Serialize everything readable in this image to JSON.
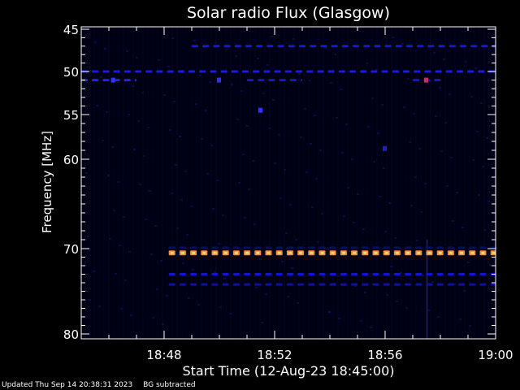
{
  "chart_data": {
    "type": "heatmap",
    "title": "Solar radio Flux (Glasgow)",
    "xlabel": "Start Time (12-Aug-23 18:45:00)",
    "ylabel": "Frequency [MHz]",
    "x_range": [
      "18:45",
      "19:00"
    ],
    "y_range": [
      45,
      80
    ],
    "y_scale": "reversed, compressed toward high frequency",
    "x_ticks": [
      "18:48",
      "18:52",
      "18:56",
      "19:00"
    ],
    "y_ticks": [
      45,
      50,
      55,
      60,
      70,
      80
    ],
    "background_color": "#000014",
    "bands": [
      {
        "freq": 70.5,
        "from": "18:48:10",
        "to": "19:00",
        "level": "high",
        "color": "#ff8a2a"
      },
      {
        "freq": 73.0,
        "from": "18:48:10",
        "to": "19:00",
        "level": "low",
        "color": "#1414c8"
      },
      {
        "freq": 74.2,
        "from": "18:48:10",
        "to": "19:00",
        "level": "low",
        "color": "#10109a"
      },
      {
        "freq": 69.9,
        "from": "18:48:10",
        "to": "19:00",
        "level": "very-low",
        "color": "#0c0c5a"
      },
      {
        "freq": 47.0,
        "from": "18:49",
        "to": "19:00",
        "level": "low",
        "color": "#1818d0"
      },
      {
        "freq": 50.0,
        "from": "18:45",
        "to": "19:00",
        "level": "low",
        "color": "#1a1ae0"
      },
      {
        "freq": 51.0,
        "from": "18:45",
        "to": "18:47",
        "level": "low",
        "color": "#2222f0"
      },
      {
        "freq": 51.0,
        "from": "18:51",
        "to": "18:53",
        "level": "low",
        "color": "#1818c0"
      },
      {
        "freq": 51.0,
        "from": "18:57",
        "to": "18:58",
        "level": "low",
        "color": "#1818c0"
      }
    ],
    "spots": [
      {
        "t": "18:50:00",
        "freq": 51.0,
        "color": "#3030ff"
      },
      {
        "t": "18:46:10",
        "freq": 51.0,
        "color": "#3030ff"
      },
      {
        "t": "18:51:30",
        "freq": 54.5,
        "color": "#3030ff"
      },
      {
        "t": "18:56:00",
        "freq": 58.8,
        "color": "#2020c0"
      },
      {
        "t": "18:57:30",
        "freq": 51.0,
        "color": "#c03060"
      }
    ]
  },
  "footer": {
    "updated": "Updated Thu Sep 14 20:38:31 2023",
    "note": "BG subtracted"
  }
}
